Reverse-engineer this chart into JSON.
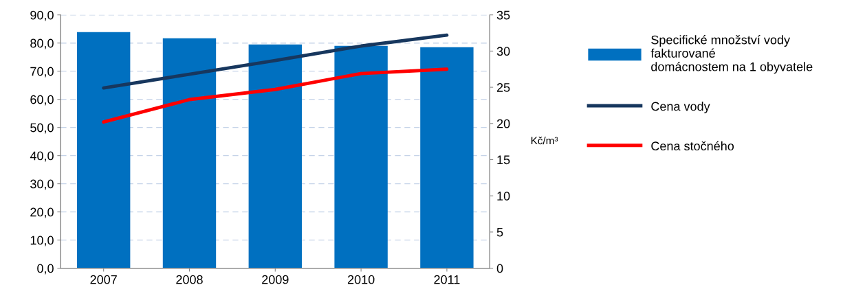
{
  "chart_data": {
    "type": "bar",
    "categories": [
      "2007",
      "2008",
      "2009",
      "2010",
      "2011"
    ],
    "series": [
      {
        "name": "Specifické množství vody\nfakturované\ndomácnostem na 1 obyvatele",
        "color": "#0070c0",
        "values": [
          83.9,
          81.7,
          79.5,
          79.0,
          78.5
        ]
      },
      {
        "name": "Cena vody",
        "type": "line",
        "axis": "y2",
        "color": "#17375e",
        "values": [
          24.9,
          26.8,
          28.7,
          30.7,
          32.2
        ]
      },
      {
        "name": "Cena stočného",
        "type": "line",
        "axis": "y2",
        "color": "#ff0000",
        "values": [
          20.2,
          23.3,
          24.7,
          26.9,
          27.5
        ]
      }
    ],
    "ylim": [
      0,
      90
    ],
    "yticks": [
      {
        "value": 0,
        "label": "0,0"
      },
      {
        "value": 10,
        "label": "10,0"
      },
      {
        "value": 20,
        "label": "20,0"
      },
      {
        "value": 30,
        "label": "30,0"
      },
      {
        "value": 40,
        "label": "40,0"
      },
      {
        "value": 50,
        "label": "50,0"
      },
      {
        "value": 60,
        "label": "60,0"
      },
      {
        "value": 70,
        "label": "70,0"
      },
      {
        "value": 80,
        "label": "80,0"
      },
      {
        "value": 90,
        "label": "90,0"
      }
    ],
    "y2lim": [
      0,
      35
    ],
    "y2ticks": [
      0,
      5,
      10,
      15,
      20,
      25,
      30,
      35
    ],
    "y2label": "Kč/m³",
    "grid": "y",
    "legend": "right",
    "marker": "none",
    "line_style": "solid"
  }
}
